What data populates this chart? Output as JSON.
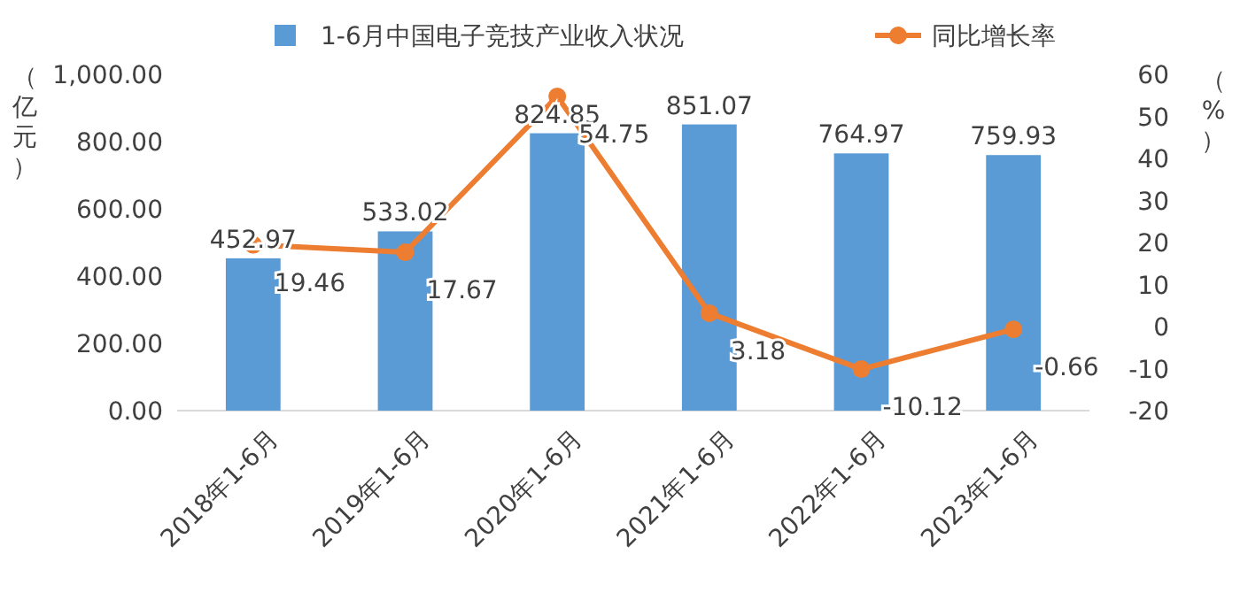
{
  "chart_data": {
    "type": "bar",
    "categories": [
      "2018年1-6月",
      "2019年1-6月",
      "2020年1-6月",
      "2021年1-6月",
      "2022年1-6月",
      "2023年1-6月"
    ],
    "series": [
      {
        "name": "1-6月中国电子竞技产业收入状况",
        "color": "#5b9bd5",
        "values": [
          452.97,
          533.02,
          824.85,
          851.07,
          764.97,
          759.93
        ]
      },
      {
        "name": "同比增长率",
        "type": "line",
        "axis": "y2",
        "color": "#ed7d31",
        "marker": "circle",
        "values": [
          19.46,
          17.67,
          54.75,
          3.18,
          -10.12,
          -0.66
        ]
      }
    ],
    "ylabel": "（亿元）",
    "y2label": "（%）",
    "ylim": [
      0,
      1000
    ],
    "yticks": [
      {
        "value": 0,
        "label": "0.00"
      },
      {
        "value": 200,
        "label": "200.00"
      },
      {
        "value": 400,
        "label": "400.00"
      },
      {
        "value": 600,
        "label": "600.00"
      },
      {
        "value": 800,
        "label": "800.00"
      },
      {
        "value": 1000,
        "label": "1,000.00"
      }
    ],
    "y2lim": [
      -20,
      60
    ],
    "y2ticks": [
      -20,
      -10,
      0,
      10,
      20,
      30,
      40,
      50,
      60
    ],
    "data_labels": true,
    "legend": "top"
  }
}
